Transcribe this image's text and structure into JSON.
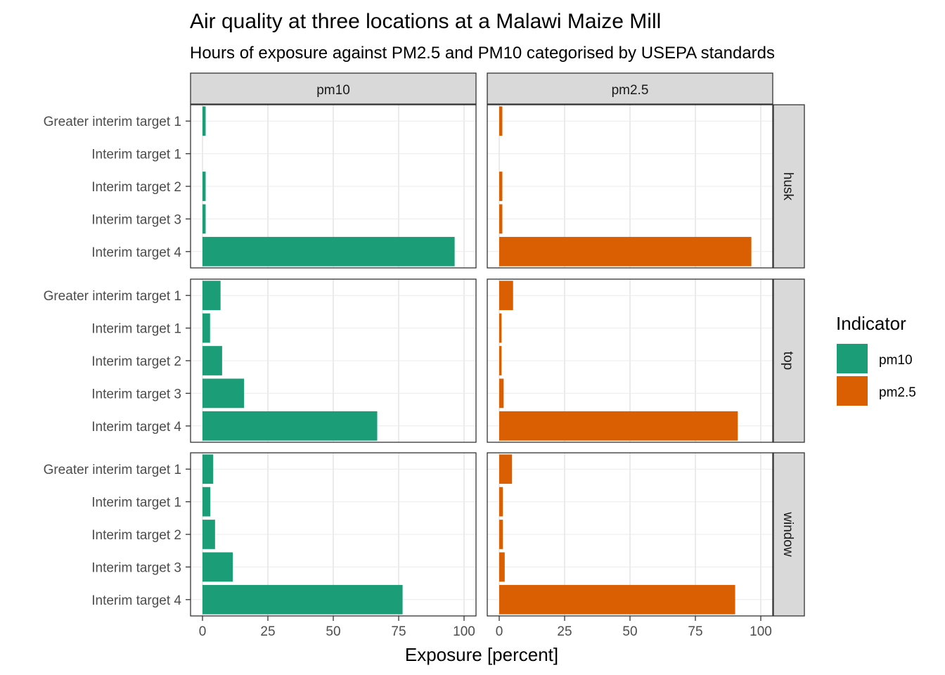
{
  "chart_data": {
    "type": "bar",
    "orientation": "horizontal",
    "title": "Air quality at three locations at a Malawi Maize Mill",
    "subtitle": "Hours of exposure against PM2.5 and PM10 categorised by USEPA standards",
    "xlabel": "Exposure [percent]",
    "ylabel": "",
    "xlim": [
      0,
      100
    ],
    "x_ticks": [
      0,
      25,
      50,
      75,
      100
    ],
    "grid": true,
    "legend": {
      "title": "Indicator",
      "position": "right"
    },
    "categories": [
      "Greater interim target 1",
      "Interim target 1",
      "Interim target 2",
      "Interim target 3",
      "Interim target 4"
    ],
    "facet_columns": [
      "pm10",
      "pm2.5"
    ],
    "facet_rows": [
      "husk",
      "top",
      "window"
    ],
    "series": [
      {
        "name": "pm10",
        "color": "#1b9e77"
      },
      {
        "name": "pm2.5",
        "color": "#d95f02"
      }
    ],
    "panels": [
      {
        "row": "husk",
        "col": "pm10",
        "values": [
          1.2,
          0,
          1.2,
          1.2,
          96.4
        ]
      },
      {
        "row": "husk",
        "col": "pm2.5",
        "values": [
          1.2,
          0,
          1.2,
          1.2,
          96.4
        ]
      },
      {
        "row": "top",
        "col": "pm10",
        "values": [
          6.9,
          2.9,
          7.5,
          15.9,
          66.8
        ]
      },
      {
        "row": "top",
        "col": "pm2.5",
        "values": [
          5.3,
          0.9,
          0.9,
          1.7,
          91.2
        ]
      },
      {
        "row": "window",
        "col": "pm10",
        "values": [
          4.1,
          3.0,
          4.8,
          11.6,
          76.5
        ]
      },
      {
        "row": "window",
        "col": "pm2.5",
        "values": [
          4.9,
          1.4,
          1.4,
          2.1,
          90.2
        ]
      }
    ]
  }
}
